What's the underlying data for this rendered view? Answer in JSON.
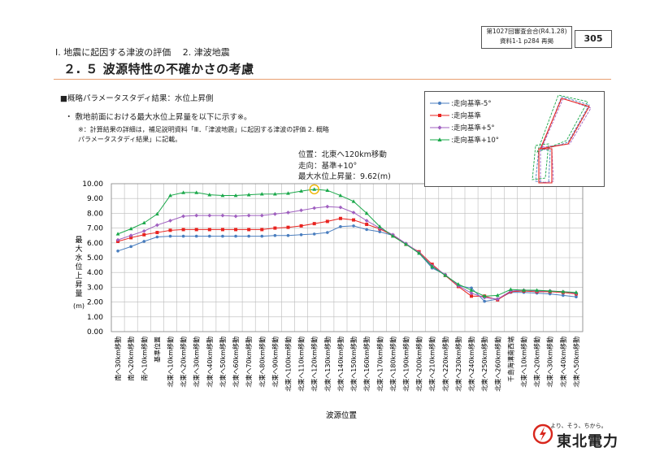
{
  "header": {
    "meta_line1": "第1027回審査会合(R4.1.28)",
    "meta_line2": "資料1-1  p284  再掲",
    "page_number": "305",
    "section": "Ⅰ. 地震に起因する津波の評価　 2. 津波地震",
    "title": "２. ５  波源特性の不確かさの考慮"
  },
  "body": {
    "subhead": "■概略パラメータスタディ結果：水位上昇側",
    "bullet": "敷地前面における最大水位上昇量を以下に示す※。",
    "note": "※：計算結果の詳細は，補足説明資料「Ⅲ．「津波地震」に起因する津波の評価  2. 概略パラメータスタディ結果」に記載。",
    "callout_line1": "位置：北東へ120km移動",
    "callout_line2": "走向：基準+10°",
    "callout_line3": "最大水位上昇量：9.62(m)"
  },
  "legend": [
    {
      "label": ":走向基準-5°",
      "color": "#4a7ebf",
      "marker": "circle"
    },
    {
      "label": ":走向基準",
      "color": "#e8231f",
      "marker": "square"
    },
    {
      "label": ":走向基準+5°",
      "color": "#a060c0",
      "marker": "diamond"
    },
    {
      "label": ":走向基準+10°",
      "color": "#1aa84a",
      "marker": "triangle"
    }
  ],
  "logo": {
    "slogan": "より、そう、ちから。",
    "name": "東北電力"
  },
  "chart_data": {
    "type": "line",
    "xlabel": "波源位置",
    "ylabel": "最大水位上昇量(m)",
    "ylim": [
      0,
      10
    ],
    "yticks": [
      "0.00",
      "1.00",
      "2.00",
      "3.00",
      "4.00",
      "5.00",
      "6.00",
      "7.00",
      "8.00",
      "9.00",
      "10.00"
    ],
    "categories": [
      "南へ30km移動",
      "南へ20km移動",
      "南へ10km移動",
      "基準位置",
      "北東へ10km移動",
      "北東へ20km移動",
      "北東へ30km移動",
      "北東へ40km移動",
      "北東へ50km移動",
      "北東へ60km移動",
      "北東へ70km移動",
      "北東へ80km移動",
      "北東へ90km移動",
      "北東へ100km移動",
      "北東へ110km移動",
      "北東へ120km移動",
      "北東へ130km移動",
      "北東へ140km移動",
      "北東へ150km移動",
      "北東へ160km移動",
      "北東へ170km移動",
      "北東へ180km移動",
      "北東へ190km移動",
      "北東へ200km移動",
      "北東へ210km移動",
      "北東へ220km移動",
      "北東へ230km移動",
      "北東へ240km移動",
      "北東へ250km移動",
      "北東へ260km移動",
      "千島海溝南西端",
      "北東へ10km移動",
      "北東へ20km移動",
      "北東へ30km移動",
      "北東へ40km移動",
      "北東へ50km移動"
    ],
    "series": [
      {
        "name": ":走向基準-5°",
        "color": "#4a7ebf",
        "values": [
          5.45,
          5.75,
          6.1,
          6.4,
          6.45,
          6.45,
          6.45,
          6.45,
          6.45,
          6.45,
          6.45,
          6.45,
          6.5,
          6.5,
          6.55,
          6.6,
          6.7,
          7.1,
          7.15,
          6.9,
          6.75,
          6.5,
          5.95,
          5.3,
          4.3,
          3.85,
          3.1,
          2.95,
          2.05,
          2.2,
          2.65,
          2.65,
          2.6,
          2.55,
          2.45,
          2.35
        ]
      },
      {
        "name": ":走向基準",
        "color": "#e8231f",
        "values": [
          6.1,
          6.35,
          6.55,
          6.7,
          6.85,
          6.9,
          6.9,
          6.9,
          6.9,
          6.9,
          6.9,
          6.9,
          7.0,
          7.05,
          7.15,
          7.3,
          7.45,
          7.65,
          7.55,
          7.25,
          6.95,
          6.5,
          5.9,
          5.4,
          4.55,
          3.8,
          3.05,
          2.4,
          2.4,
          2.15,
          2.7,
          2.75,
          2.7,
          2.7,
          2.65,
          2.55
        ]
      },
      {
        "name": ":走向基準+5°",
        "color": "#a060c0",
        "values": [
          6.2,
          6.5,
          6.8,
          7.2,
          7.5,
          7.8,
          7.85,
          7.85,
          7.85,
          7.8,
          7.85,
          7.85,
          7.95,
          8.05,
          8.2,
          8.35,
          8.45,
          8.4,
          8.05,
          7.5,
          7.0,
          6.55,
          5.95,
          5.35,
          4.45,
          3.85,
          3.1,
          2.6,
          2.3,
          2.2,
          2.75,
          2.8,
          2.75,
          2.75,
          2.7,
          2.6
        ]
      },
      {
        "name": ":走向基準+10°",
        "color": "#1aa84a",
        "values": [
          6.6,
          6.95,
          7.35,
          7.95,
          9.2,
          9.4,
          9.4,
          9.25,
          9.2,
          9.2,
          9.25,
          9.3,
          9.3,
          9.35,
          9.5,
          9.62,
          9.55,
          9.2,
          8.8,
          8.0,
          7.1,
          6.45,
          5.9,
          5.3,
          4.4,
          3.8,
          3.2,
          2.8,
          2.4,
          2.45,
          2.85,
          2.8,
          2.8,
          2.75,
          2.7,
          2.65
        ]
      }
    ],
    "annotation": {
      "category_index": 15,
      "series": ":走向基準+10°",
      "value": 9.62
    }
  }
}
